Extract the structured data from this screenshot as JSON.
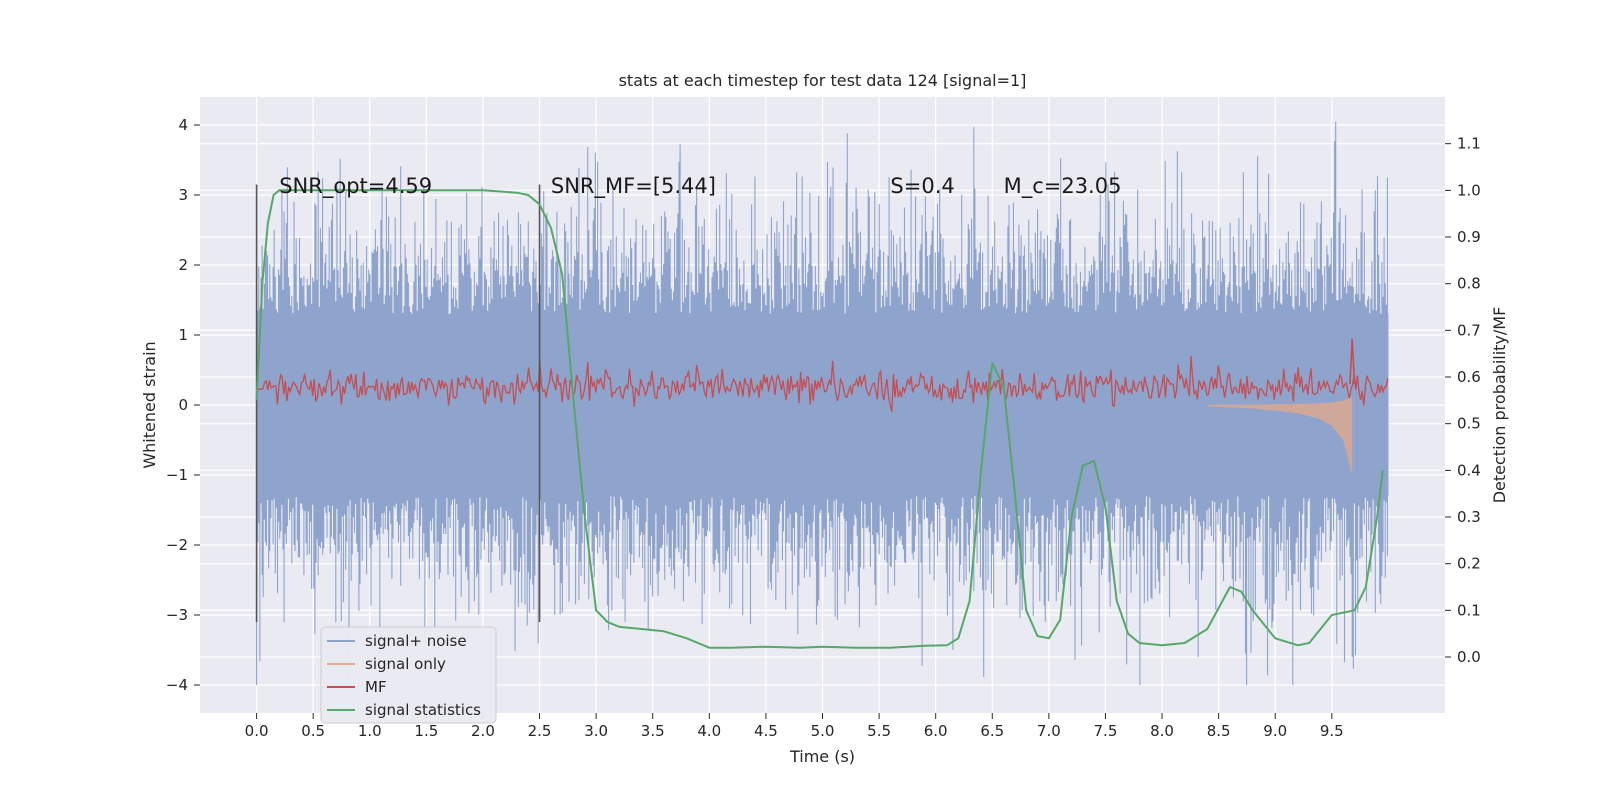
{
  "chart_data": {
    "type": "line",
    "title": "stats at each timestep for test data 124 [signal=1]",
    "xlabel": "Time (s)",
    "ylabel": "Whitened strain",
    "y2label": "Detection probability/MF",
    "xlim": [
      -0.5,
      10.5
    ],
    "ylim": [
      -4.4,
      4.4
    ],
    "y2lim": [
      -0.12,
      1.2
    ],
    "x_ticks": [
      0.0,
      0.5,
      1.0,
      1.5,
      2.0,
      2.5,
      3.0,
      3.5,
      4.0,
      4.5,
      5.0,
      5.5,
      6.0,
      6.5,
      7.0,
      7.5,
      8.0,
      8.5,
      9.0,
      9.5
    ],
    "x_tick_labels": [
      "0.0",
      "0.5",
      "1.0",
      "1.5",
      "2.0",
      "2.5",
      "3.0",
      "3.5",
      "4.0",
      "4.5",
      "5.0",
      "5.5",
      "6.0",
      "6.5",
      "7.0",
      "7.5",
      "8.0",
      "8.5",
      "9.0",
      "9.5"
    ],
    "y_ticks": [
      -4,
      -3,
      -2,
      -1,
      0,
      1,
      2,
      3,
      4
    ],
    "y_tick_labels": [
      "−4",
      "−3",
      "−2",
      "−1",
      "0",
      "1",
      "2",
      "3",
      "4"
    ],
    "y2_ticks": [
      0.0,
      0.1,
      0.2,
      0.3,
      0.4,
      0.5,
      0.6,
      0.7,
      0.8,
      0.9,
      1.0,
      1.1
    ],
    "y2_tick_labels": [
      "0.0",
      "0.1",
      "0.2",
      "0.3",
      "0.4",
      "0.5",
      "0.6",
      "0.7",
      "0.8",
      "0.9",
      "1.0",
      "1.1"
    ],
    "grid": true,
    "legend_position": "bottom-left",
    "annotations": [
      {
        "text": "SNR_opt=4.59",
        "x": 0.2,
        "y": 3.2
      },
      {
        "text": "SNR_MF=[5.44]",
        "x": 2.6,
        "y": 3.2
      },
      {
        "text": "S=0.4",
        "x": 5.6,
        "y": 3.2
      },
      {
        "text": "M_c=23.05",
        "x": 6.6,
        "y": 3.2
      }
    ],
    "vertical_lines": [
      {
        "x": 0.0,
        "y_range": [
          -3.1,
          3.15
        ]
      },
      {
        "x": 2.5,
        "y_range": [
          -3.1,
          3.15
        ]
      }
    ],
    "series": [
      {
        "name": "signal+ noise",
        "axis": "left",
        "color": "#8fa4cc",
        "style": "dense noise band",
        "x_range": [
          0.0,
          10.0
        ],
        "core_envelope": [
          -1.3,
          1.3
        ],
        "approx_extremes": [
          -4.0,
          4.05
        ]
      },
      {
        "name": "signal only",
        "axis": "left",
        "color": "#e5a98a",
        "style": "chirp growing until merger",
        "x": [
          8.4,
          8.8,
          9.0,
          9.2,
          9.4,
          9.5,
          9.6,
          9.65,
          9.68
        ],
        "y_envelope": [
          0.02,
          0.05,
          0.08,
          0.12,
          0.2,
          0.3,
          0.5,
          0.8,
          1.0
        ],
        "merger_time": 9.68
      },
      {
        "name": "MF",
        "axis": "left",
        "color": "#c44e52",
        "style": "noisy band",
        "x_range": [
          0.0,
          10.0
        ],
        "center": 0.25,
        "half_width": 0.25,
        "approx_max": 0.95
      },
      {
        "name": "signal statistics",
        "axis": "right",
        "color": "#55a868",
        "x": [
          0.0,
          0.05,
          0.1,
          0.15,
          0.2,
          0.4,
          1.0,
          2.0,
          2.3,
          2.4,
          2.5,
          2.6,
          2.7,
          2.8,
          2.9,
          3.0,
          3.1,
          3.2,
          3.4,
          3.6,
          3.8,
          4.0,
          4.2,
          4.5,
          4.8,
          5.0,
          5.3,
          5.6,
          5.9,
          6.1,
          6.2,
          6.3,
          6.4,
          6.5,
          6.6,
          6.7,
          6.8,
          6.9,
          7.0,
          7.1,
          7.2,
          7.3,
          7.4,
          7.5,
          7.6,
          7.7,
          7.8,
          8.0,
          8.2,
          8.4,
          8.6,
          8.7,
          8.8,
          9.0,
          9.2,
          9.3,
          9.5,
          9.7,
          9.8,
          9.9,
          9.95
        ],
        "y": [
          0.55,
          0.8,
          0.93,
          0.99,
          1.0,
          1.0,
          1.0,
          1.0,
          0.995,
          0.99,
          0.97,
          0.92,
          0.82,
          0.55,
          0.3,
          0.1,
          0.075,
          0.065,
          0.06,
          0.055,
          0.04,
          0.02,
          0.02,
          0.022,
          0.02,
          0.022,
          0.02,
          0.02,
          0.024,
          0.025,
          0.04,
          0.12,
          0.4,
          0.63,
          0.58,
          0.35,
          0.1,
          0.045,
          0.04,
          0.08,
          0.3,
          0.41,
          0.42,
          0.32,
          0.12,
          0.05,
          0.03,
          0.025,
          0.03,
          0.06,
          0.15,
          0.14,
          0.1,
          0.04,
          0.025,
          0.03,
          0.09,
          0.1,
          0.15,
          0.3,
          0.4
        ]
      }
    ]
  }
}
